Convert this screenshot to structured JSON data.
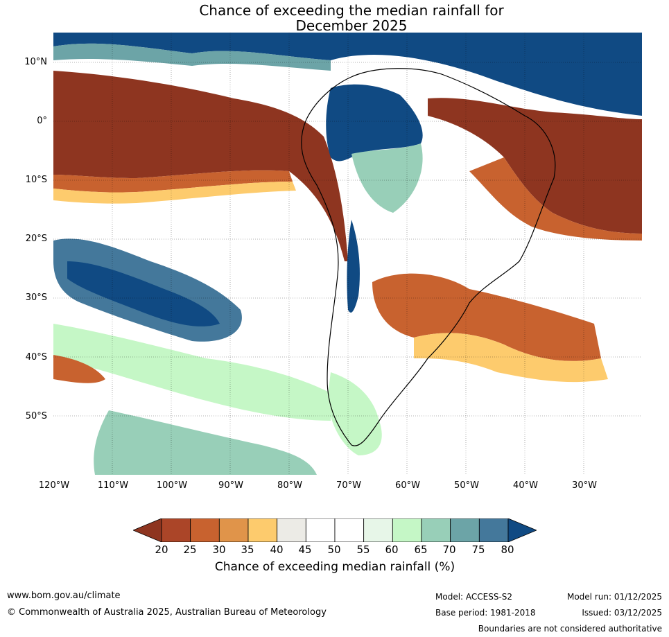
{
  "title": {
    "line1": "Chance of exceeding the median rainfall for",
    "line2": "December 2025"
  },
  "map": {
    "lat_labels": [
      "10°N",
      "0°",
      "10°S",
      "20°S",
      "30°S",
      "40°S",
      "50°S"
    ],
    "lon_labels": [
      "120°W",
      "110°W",
      "100°W",
      "90°W",
      "80°W",
      "70°W",
      "60°W",
      "50°W",
      "40°W",
      "30°W"
    ],
    "extent": {
      "lon": [
        -120,
        -20
      ],
      "lat": [
        -60,
        15
      ]
    },
    "grid": true
  },
  "colorbar": {
    "title": "Chance of exceeding median rainfall (%)",
    "ticks": [
      "20",
      "25",
      "30",
      "35",
      "40",
      "45",
      "50",
      "55",
      "60",
      "65",
      "70",
      "75",
      "80"
    ],
    "colors": [
      "#8e3520",
      "#ab4528",
      "#c8622f",
      "#e0944a",
      "#fdcb6d",
      "#ecebe6",
      "#ffffff",
      "#ffffff",
      "#e7f6e8",
      "#c5f7c6",
      "#98cfb8",
      "#6ca4a7",
      "#44789b",
      "#104a83"
    ]
  },
  "footer": {
    "website": "www.bom.gov.au/climate",
    "copyright": "© Commonwealth of Australia 2025, Australian Bureau of Meteorology",
    "model": "Model: ACCESS-S2",
    "base_period": "Base period: 1981-2018",
    "model_run": "Model run: 01/12/2025",
    "issued": "Issued: 03/12/2025",
    "disclaimer": "Boundaries are not considered authoritative"
  }
}
